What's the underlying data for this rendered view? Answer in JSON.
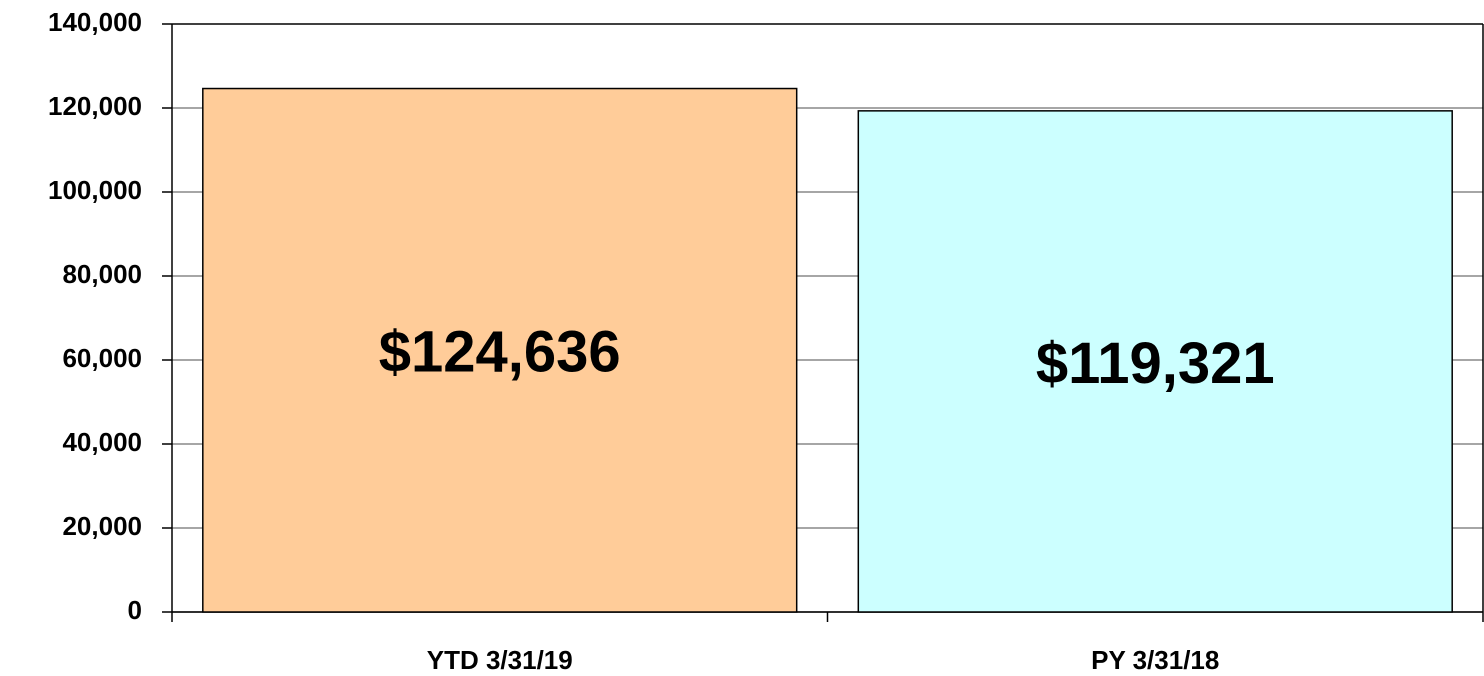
{
  "chart_data": {
    "type": "bar",
    "categories": [
      "YTD 3/31/19",
      "PY 3/31/18"
    ],
    "values": [
      124636,
      119321
    ],
    "value_labels": [
      "$124,636",
      "$119,321"
    ],
    "colors": [
      "#ffcc99",
      "#ccffff"
    ],
    "ylim": [
      0,
      140000
    ],
    "yticks": [
      0,
      {
        "value": 20000,
        "label": "20,000"
      },
      {
        "value": 40000,
        "label": "40,000"
      },
      {
        "value": 60000,
        "label": "60,000"
      },
      {
        "value": 80000,
        "label": "80,000"
      },
      {
        "value": 100000,
        "label": "100,000"
      },
      {
        "value": 120000,
        "label": "120,000"
      },
      {
        "value": 140000,
        "label": "140,000"
      }
    ],
    "grid": true
  }
}
